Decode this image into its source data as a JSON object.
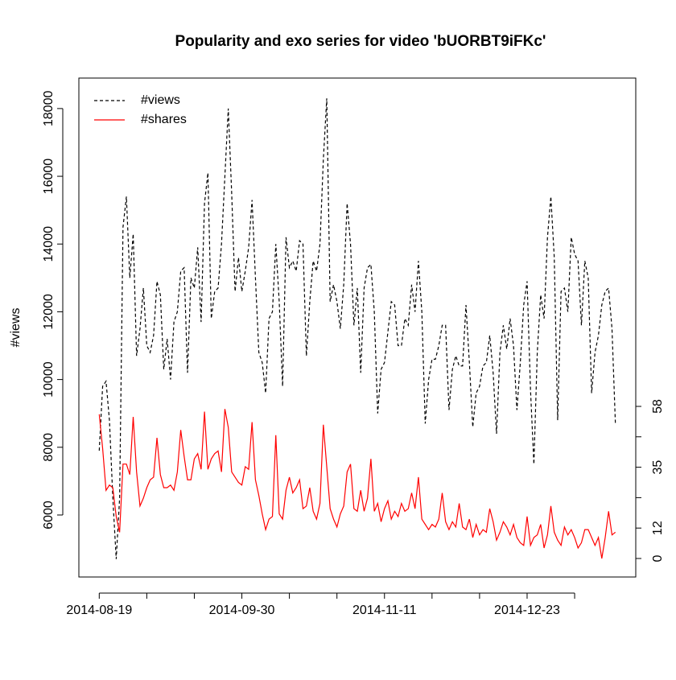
{
  "chart_data": {
    "type": "line",
    "title": "Popularity and exo series for video 'bUORBT9iFKc'",
    "y_label": "#views",
    "legend_position": "top-left",
    "x": [
      "2014-08-19",
      "2014-08-20",
      "2014-08-21",
      "2014-08-22",
      "2014-08-23",
      "2014-08-24",
      "2014-08-25",
      "2014-08-26",
      "2014-08-27",
      "2014-08-28",
      "2014-08-29",
      "2014-08-30",
      "2014-08-31",
      "2014-09-01",
      "2014-09-02",
      "2014-09-03",
      "2014-09-04",
      "2014-09-05",
      "2014-09-06",
      "2014-09-07",
      "2014-09-08",
      "2014-09-09",
      "2014-09-10",
      "2014-09-11",
      "2014-09-12",
      "2014-09-13",
      "2014-09-14",
      "2014-09-15",
      "2014-09-16",
      "2014-09-17",
      "2014-09-18",
      "2014-09-19",
      "2014-09-20",
      "2014-09-21",
      "2014-09-22",
      "2014-09-23",
      "2014-09-24",
      "2014-09-25",
      "2014-09-26",
      "2014-09-27",
      "2014-09-28",
      "2014-09-29",
      "2014-09-30",
      "2014-10-01",
      "2014-10-02",
      "2014-10-03",
      "2014-10-04",
      "2014-10-05",
      "2014-10-06",
      "2014-10-07",
      "2014-10-08",
      "2014-10-09",
      "2014-10-10",
      "2014-10-11",
      "2014-10-12",
      "2014-10-13",
      "2014-10-14",
      "2014-10-15",
      "2014-10-16",
      "2014-10-17",
      "2014-10-18",
      "2014-10-19",
      "2014-10-20",
      "2014-10-21",
      "2014-10-22",
      "2014-10-23",
      "2014-10-24",
      "2014-10-25",
      "2014-10-26",
      "2014-10-27",
      "2014-10-28",
      "2014-10-29",
      "2014-10-30",
      "2014-10-31",
      "2014-11-01",
      "2014-11-02",
      "2014-11-03",
      "2014-11-04",
      "2014-11-05",
      "2014-11-06",
      "2014-11-07",
      "2014-11-08",
      "2014-11-09",
      "2014-11-10",
      "2014-11-11",
      "2014-11-12",
      "2014-11-13",
      "2014-11-14",
      "2014-11-15",
      "2014-11-16",
      "2014-11-17",
      "2014-11-18",
      "2014-11-19",
      "2014-11-20",
      "2014-11-21",
      "2014-11-22",
      "2014-11-23",
      "2014-11-24",
      "2014-11-25",
      "2014-11-26",
      "2014-11-27",
      "2014-11-28",
      "2014-11-29",
      "2014-11-30",
      "2014-12-01",
      "2014-12-02",
      "2014-12-03",
      "2014-12-04",
      "2014-12-05",
      "2014-12-06",
      "2014-12-07",
      "2014-12-08",
      "2014-12-09",
      "2014-12-10",
      "2014-12-11",
      "2014-12-12",
      "2014-12-13",
      "2014-12-14",
      "2014-12-15",
      "2014-12-16",
      "2014-12-17",
      "2014-12-18",
      "2014-12-19",
      "2014-12-20",
      "2014-12-21",
      "2014-12-22",
      "2014-12-23",
      "2014-12-24",
      "2014-12-25",
      "2014-12-26",
      "2014-12-27",
      "2014-12-28",
      "2014-12-29",
      "2014-12-30",
      "2014-12-31",
      "2015-01-01",
      "2015-01-02",
      "2015-01-03",
      "2015-01-04",
      "2015-01-05",
      "2015-01-06",
      "2015-01-07",
      "2015-01-08",
      "2015-01-09",
      "2015-01-10",
      "2015-01-11",
      "2015-01-12",
      "2015-01-13",
      "2015-01-14",
      "2015-01-15",
      "2015-01-16",
      "2015-01-17",
      "2015-01-18"
    ],
    "series": [
      {
        "name": "#views",
        "color": "#000000",
        "dash": true,
        "values": [
          7900,
          9800,
          9950,
          8800,
          6500,
          4700,
          6500,
          14500,
          15400,
          13000,
          14300,
          10700,
          11500,
          12700,
          11000,
          10800,
          11300,
          12900,
          12500,
          10300,
          11200,
          10000,
          11700,
          12000,
          13200,
          13300,
          10200,
          13000,
          12700,
          13900,
          11700,
          15200,
          16100,
          11800,
          12600,
          12700,
          14000,
          16000,
          18000,
          15500,
          12600,
          13600,
          12600,
          13200,
          13900,
          15300,
          13000,
          10800,
          10500,
          9600,
          11800,
          12000,
          14000,
          12300,
          9800,
          14200,
          13300,
          13500,
          13200,
          14100,
          14000,
          10700,
          12300,
          13500,
          13200,
          14000,
          16500,
          18300,
          12300,
          12800,
          12300,
          11500,
          12800,
          15200,
          14000,
          11600,
          12700,
          10200,
          12700,
          13300,
          13400,
          12000,
          9000,
          10300,
          10500,
          11400,
          12300,
          12200,
          11000,
          11000,
          11800,
          11600,
          12800,
          12000,
          13500,
          12000,
          8700,
          10000,
          10600,
          10600,
          11000,
          11600,
          11600,
          9100,
          10300,
          10700,
          10400,
          10400,
          12200,
          10500,
          8600,
          9600,
          9800,
          10400,
          10500,
          11300,
          10200,
          8400,
          10800,
          11600,
          10900,
          11800,
          11000,
          9100,
          10500,
          12200,
          12900,
          9700,
          7500,
          10800,
          12500,
          11800,
          14200,
          15400,
          13600,
          8800,
          12600,
          12700,
          12000,
          14200,
          13700,
          13500,
          11600,
          13500,
          13000,
          9600,
          10800,
          11300,
          12200,
          12600,
          12700,
          11500,
          8700
        ]
      },
      {
        "name": "#shares",
        "color": "#ff0000",
        "dash": false,
        "axis": "y2",
        "values": [
          55,
          42,
          26,
          28,
          27,
          16,
          10,
          36,
          36,
          32,
          54,
          33,
          20,
          23,
          27,
          30,
          31,
          46,
          32,
          27,
          27,
          28,
          26,
          33,
          49,
          39,
          30,
          30,
          38,
          40,
          34,
          56,
          34,
          38,
          40,
          41,
          33,
          57,
          50,
          33,
          31,
          29,
          28,
          35,
          34,
          52,
          30,
          24,
          17,
          11,
          15,
          16,
          47,
          17,
          15,
          26,
          31,
          25,
          27,
          30,
          19,
          20,
          27,
          18,
          15,
          21,
          51,
          35,
          19,
          15,
          12,
          17,
          20,
          33,
          36,
          19,
          18,
          26,
          18,
          23,
          38,
          18,
          21,
          14,
          19,
          22,
          15,
          18,
          16,
          21,
          18,
          19,
          25,
          19,
          31,
          15,
          13,
          11,
          13,
          12,
          15,
          25,
          14,
          11,
          14,
          12,
          21,
          12,
          11,
          15,
          8,
          13,
          9,
          11,
          10,
          19,
          14,
          7,
          10,
          14,
          12,
          9,
          13,
          8,
          6,
          5,
          16,
          5,
          8,
          9,
          13,
          4,
          9,
          20,
          10,
          7,
          5,
          12,
          9,
          11,
          8,
          4,
          6,
          11,
          11,
          8,
          5,
          8,
          0,
          8,
          18,
          9,
          10
        ]
      }
    ],
    "xlim": [
      "2014-08-13",
      "2015-01-24"
    ],
    "xticks": [
      "2014-08-19",
      {
        "value": "2014-09-02",
        "label": null
      },
      {
        "value": "2014-09-16",
        "label": null
      },
      "2014-09-30",
      {
        "value": "2014-10-14",
        "label": null
      },
      {
        "value": "2014-10-28",
        "label": null
      },
      "2014-11-11",
      {
        "value": "2014-11-25",
        "label": null
      },
      {
        "value": "2014-12-09",
        "label": null
      },
      "2014-12-23",
      {
        "value": "2015-01-06",
        "label": null
      }
    ],
    "ylim": [
      4170,
      18900
    ],
    "yticks": [
      6000,
      8000,
      10000,
      12000,
      14000,
      16000,
      18000
    ],
    "y2lim": [
      -7.06,
      183.2
    ],
    "y2ticks": [
      0,
      {
        "value": 11.6,
        "label": "12"
      },
      {
        "value": 23.2,
        "label": null
      },
      {
        "value": 34.8,
        "label": "35"
      },
      {
        "value": 46.4,
        "label": null
      },
      58
    ]
  }
}
